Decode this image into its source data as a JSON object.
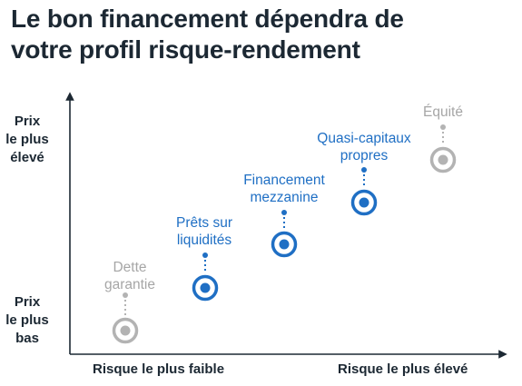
{
  "title": {
    "line1": "Le bon financement dépendra de",
    "line2": "votre profil risque-rendement"
  },
  "y_axis": {
    "high_label": [
      "Prix",
      "le plus",
      "élevé"
    ],
    "low_label": [
      "Prix",
      "le plus",
      "bas"
    ]
  },
  "x_axis": {
    "low_label": "Risque le plus faible",
    "high_label": "Risque le plus élevé"
  },
  "colors": {
    "blue": "#1f6fc4",
    "grey": "#b3b3b3",
    "axis": "#1c2833"
  },
  "points": [
    {
      "label": [
        "Dette",
        "garantie"
      ],
      "style": "grey"
    },
    {
      "label": [
        "Prêts sur",
        "liquidités"
      ],
      "style": "blue"
    },
    {
      "label": [
        "Financement",
        "mezzanine"
      ],
      "style": "blue"
    },
    {
      "label": [
        "Quasi-capitaux",
        "propres"
      ],
      "style": "blue"
    },
    {
      "label": [
        "Équité"
      ],
      "style": "grey"
    }
  ]
}
